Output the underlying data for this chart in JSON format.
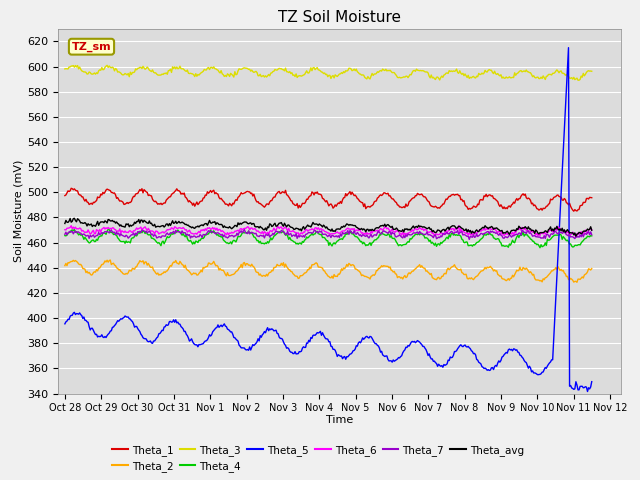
{
  "title": "TZ Soil Moisture",
  "ylabel": "Soil Moisture (mV)",
  "xlabel": "Time",
  "ylim": [
    340,
    630
  ],
  "background_color": "#dcdcdc",
  "fig_facecolor": "#f0f0f0",
  "label_box_text": "TZ_sm",
  "xtick_labels": [
    "Oct 28",
    "Oct 29",
    "Oct 30",
    "Oct 31",
    "Nov 1",
    "Nov 2",
    "Nov 3",
    "Nov 4",
    "Nov 5",
    "Nov 6",
    "Nov 7",
    "Nov 8",
    "Nov 9",
    "Nov 10",
    "Nov 11",
    "Nov 12"
  ],
  "xtick_positions": [
    0,
    1,
    2,
    3,
    4,
    5,
    6,
    7,
    8,
    9,
    10,
    11,
    12,
    13,
    14,
    15
  ],
  "ytick_positions": [
    340,
    360,
    380,
    400,
    420,
    440,
    460,
    480,
    500,
    520,
    540,
    560,
    580,
    600,
    620
  ],
  "series_order": [
    "Theta_1",
    "Theta_2",
    "Theta_3",
    "Theta_4",
    "Theta_5",
    "Theta_6",
    "Theta_7",
    "Theta_avg"
  ],
  "series": {
    "Theta_1": {
      "color": "#dd0000",
      "base": 497,
      "trend": -0.4,
      "amplitude": 5.5,
      "freq": 2.1
    },
    "Theta_2": {
      "color": "#ffaa00",
      "base": 441,
      "trend": -0.5,
      "amplitude": 5.0,
      "freq": 2.1
    },
    "Theta_3": {
      "color": "#dddd00",
      "base": 597,
      "trend": -0.3,
      "amplitude": 3.0,
      "freq": 2.1
    },
    "Theta_4": {
      "color": "#00cc00",
      "base": 465,
      "trend": -0.25,
      "amplitude": 4.5,
      "freq": 2.1
    },
    "Theta_5": {
      "color": "#0000ff",
      "base": 396,
      "trend": -2.5,
      "amplitude": 9.0,
      "freq": 1.5,
      "spike": true,
      "spike_x": 13.85
    },
    "Theta_6": {
      "color": "#ff00ff",
      "base": 470,
      "trend": -0.1,
      "amplitude": 2.0,
      "freq": 2.1
    },
    "Theta_7": {
      "color": "#9900cc",
      "base": 467,
      "trend": -0.05,
      "amplitude": 2.0,
      "freq": 2.1
    },
    "Theta_avg": {
      "color": "#000000",
      "base": 476,
      "trend": -0.5,
      "amplitude": 2.0,
      "freq": 2.1
    }
  },
  "legend_row1": [
    "Theta_1",
    "Theta_2",
    "Theta_3",
    "Theta_4",
    "Theta_5",
    "Theta_6"
  ],
  "legend_row2": [
    "Theta_7",
    "Theta_avg"
  ]
}
